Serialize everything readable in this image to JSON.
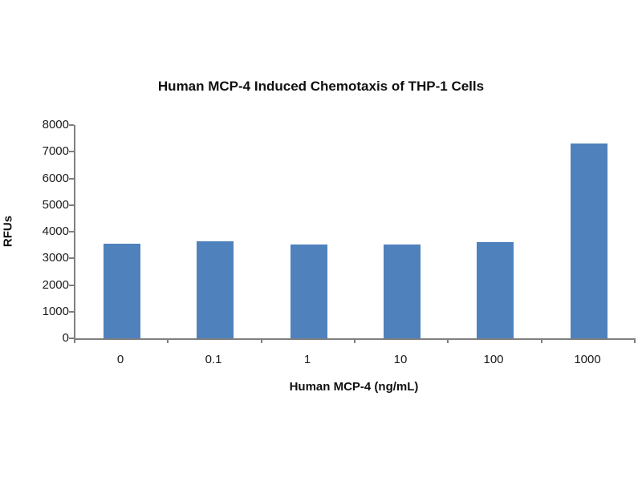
{
  "chart_data": {
    "type": "bar",
    "title": "Human MCP-4 Induced Chemotaxis of THP-1 Cells",
    "xlabel": "Human MCP-4 (ng/mL)",
    "ylabel": "RFUs",
    "categories": [
      "0",
      "0.1",
      "1",
      "10",
      "100",
      "1000"
    ],
    "values": [
      3550,
      3650,
      3520,
      3520,
      3600,
      7300
    ],
    "ylim": [
      0,
      8000
    ],
    "ytick_step": 1000,
    "yticks": [
      0,
      1000,
      2000,
      3000,
      4000,
      5000,
      6000,
      7000,
      8000
    ],
    "grid": false,
    "legend_position": "none",
    "bar_color": "#4f81bd",
    "axis_color": "#7f7f7f"
  }
}
